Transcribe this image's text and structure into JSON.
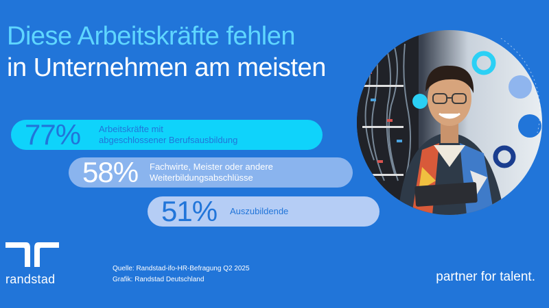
{
  "title": {
    "line1": "Diese Arbeitskräfte fehlen",
    "line2": "in Unternehmen am meisten"
  },
  "stats": [
    {
      "value": "77%",
      "label_line1": "Arbeitskräfte mit",
      "label_line2": "abgeschlossener Berufsausbildung",
      "color": "#0fd3fb"
    },
    {
      "value": "58%",
      "label_line1": "Fachwirte, Meister oder andere",
      "label_line2": "Weiterbildungsabschlüsse",
      "color": "#8ab4ee"
    },
    {
      "value": "51%",
      "label_line1": "Auszubildende",
      "label_line2": "",
      "color": "#b5cdf5"
    }
  ],
  "source": {
    "line1": "Quelle: Randstad-ifo-HR-Befragung Q2 2025",
    "line2": "Grafik: Randstad Deutschland"
  },
  "brand": {
    "name": "randstad",
    "claim": "partner for talent.",
    "background_color": "#2175d9",
    "accent_color": "#5fd6ff"
  },
  "photo": {
    "icon": "person-at-server-rack-photo"
  }
}
